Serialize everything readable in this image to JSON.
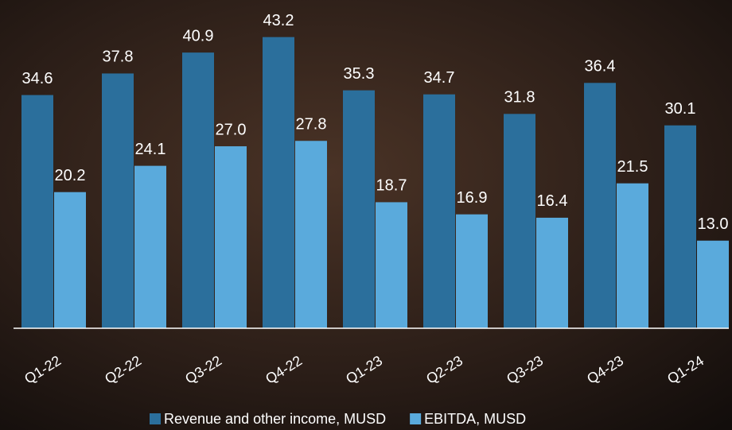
{
  "chart_data": {
    "type": "bar",
    "categories": [
      "Q1-22",
      "Q2-22",
      "Q3-22",
      "Q4-22",
      "Q1-23",
      "Q2-23",
      "Q3-23",
      "Q4-23",
      "Q1-24"
    ],
    "series": [
      {
        "name": "Revenue and other income, MUSD",
        "color": "#2b6f9c",
        "values": [
          34.6,
          37.8,
          40.9,
          43.2,
          35.3,
          34.7,
          31.8,
          36.4,
          30.1
        ],
        "value_labels": [
          "34.6",
          "37.8",
          "40.9",
          "43.2",
          "35.3",
          "34.7",
          "31.8",
          "36.4",
          "30.1"
        ]
      },
      {
        "name": "EBITDA, MUSD",
        "color": "#5aaadc",
        "values": [
          20.2,
          24.1,
          27.0,
          27.8,
          18.7,
          16.9,
          16.4,
          21.5,
          13.0
        ],
        "value_labels": [
          "20.2",
          "24.1",
          "27.0",
          "27.8",
          "18.7",
          "16.9",
          "16.4",
          "21.5",
          "13.0"
        ]
      }
    ],
    "ylim": [
      0,
      48.7
    ]
  }
}
